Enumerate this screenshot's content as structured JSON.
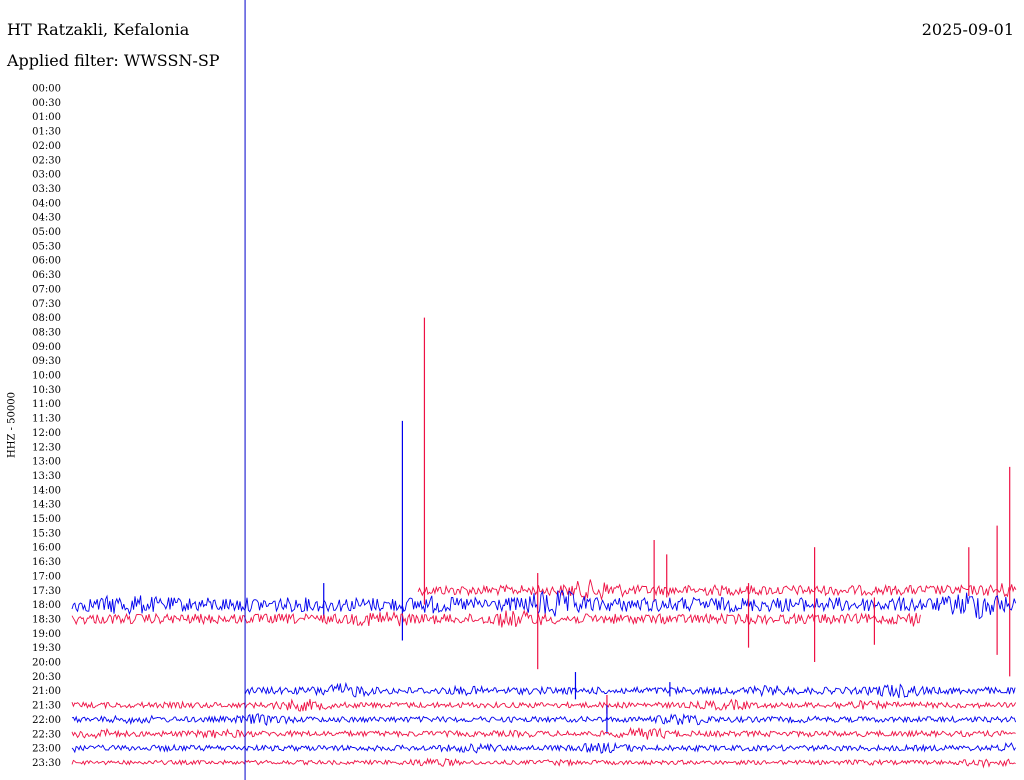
{
  "header": {
    "station": "HT Ratzakli, Kefalonia",
    "date": "2025-09-01",
    "filter_label": "Applied filter: WWSSN-SP",
    "channel": "HHZ - 50000"
  },
  "chart_data": {
    "type": "line",
    "title": "HT Ratzakli, Kefalonia",
    "subtitle": "Applied filter: WWSSN-SP",
    "ylabel": "HHZ - 50000",
    "grid": false,
    "colors": {
      "odd_rows": "#ee1144",
      "even_rows": "#0000ee",
      "marker": "#0000cc"
    },
    "row_labels": [
      "00:00",
      "00:30",
      "01:00",
      "01:30",
      "02:00",
      "02:30",
      "03:00",
      "03:30",
      "04:00",
      "04:30",
      "05:00",
      "05:30",
      "06:00",
      "06:30",
      "07:00",
      "07:30",
      "08:00",
      "08:30",
      "09:00",
      "09:30",
      "10:00",
      "10:30",
      "11:00",
      "11:30",
      "12:00",
      "12:30",
      "13:00",
      "13:30",
      "14:00",
      "14:30",
      "15:00",
      "15:30",
      "16:00",
      "16:30",
      "17:00",
      "17:30",
      "18:00",
      "18:30",
      "19:00",
      "19:30",
      "20:00",
      "20:30",
      "21:00",
      "21:30",
      "22:00",
      "22:30",
      "23:00",
      "23:30"
    ],
    "time_marker_minute": 5.5,
    "traces": [
      {
        "row": "17:30",
        "start_minute": 11,
        "end_minute": 30,
        "noise": 0.35,
        "spikes": [
          {
            "minute": 11.2,
            "up": 19.0,
            "down": 1.0
          },
          {
            "minute": 18.5,
            "up": 3.5,
            "down": 0.8
          },
          {
            "minute": 18.9,
            "up": 2.5,
            "down": 0.5
          },
          {
            "minute": 28.5,
            "up": 3.0,
            "down": 0.4
          },
          {
            "minute": 29.4,
            "up": 4.5,
            "down": 4.5
          },
          {
            "minute": 29.8,
            "up": 8.6,
            "down": 6.0
          }
        ]
      },
      {
        "row": "18:00",
        "start_minute": 0,
        "end_minute": 30,
        "noise": 0.5,
        "spikes": [
          {
            "minute": 8.0,
            "up": 1.5,
            "down": 0.8
          },
          {
            "minute": 10.5,
            "up": 12.8,
            "down": 2.5
          }
        ]
      },
      {
        "row": "18:30",
        "start_minute": 0,
        "end_minute": 27,
        "noise": 0.35,
        "spikes": [
          {
            "minute": 14.8,
            "up": 3.2,
            "down": 3.5
          },
          {
            "minute": 21.5,
            "up": 2.5,
            "down": 2.0
          },
          {
            "minute": 23.6,
            "up": 5.0,
            "down": 3.0
          },
          {
            "minute": 25.5,
            "up": 1.5,
            "down": 1.8
          }
        ]
      },
      {
        "row": "21:00",
        "start_minute": 5.5,
        "end_minute": 30,
        "noise": 0.25,
        "spikes": [
          {
            "minute": 16.0,
            "up": 1.3,
            "down": 0.6
          },
          {
            "minute": 19.0,
            "up": 0.6,
            "down": 0.4
          }
        ]
      },
      {
        "row": "21:30",
        "start_minute": 0,
        "end_minute": 30,
        "noise": 0.2,
        "spikes": [
          {
            "minute": 17.0,
            "up": 0.7,
            "down": 0.6
          }
        ]
      },
      {
        "row": "22:00",
        "start_minute": 0,
        "end_minute": 30,
        "noise": 0.2,
        "spikes": [
          {
            "minute": 17.0,
            "up": 1.0,
            "down": 1.0
          }
        ]
      },
      {
        "row": "22:30",
        "start_minute": 0,
        "end_minute": 30,
        "noise": 0.2,
        "spikes": []
      },
      {
        "row": "23:00",
        "start_minute": 0,
        "end_minute": 30,
        "noise": 0.2,
        "spikes": []
      },
      {
        "row": "23:30",
        "start_minute": 0,
        "end_minute": 30,
        "noise": 0.15,
        "spikes": []
      }
    ]
  }
}
